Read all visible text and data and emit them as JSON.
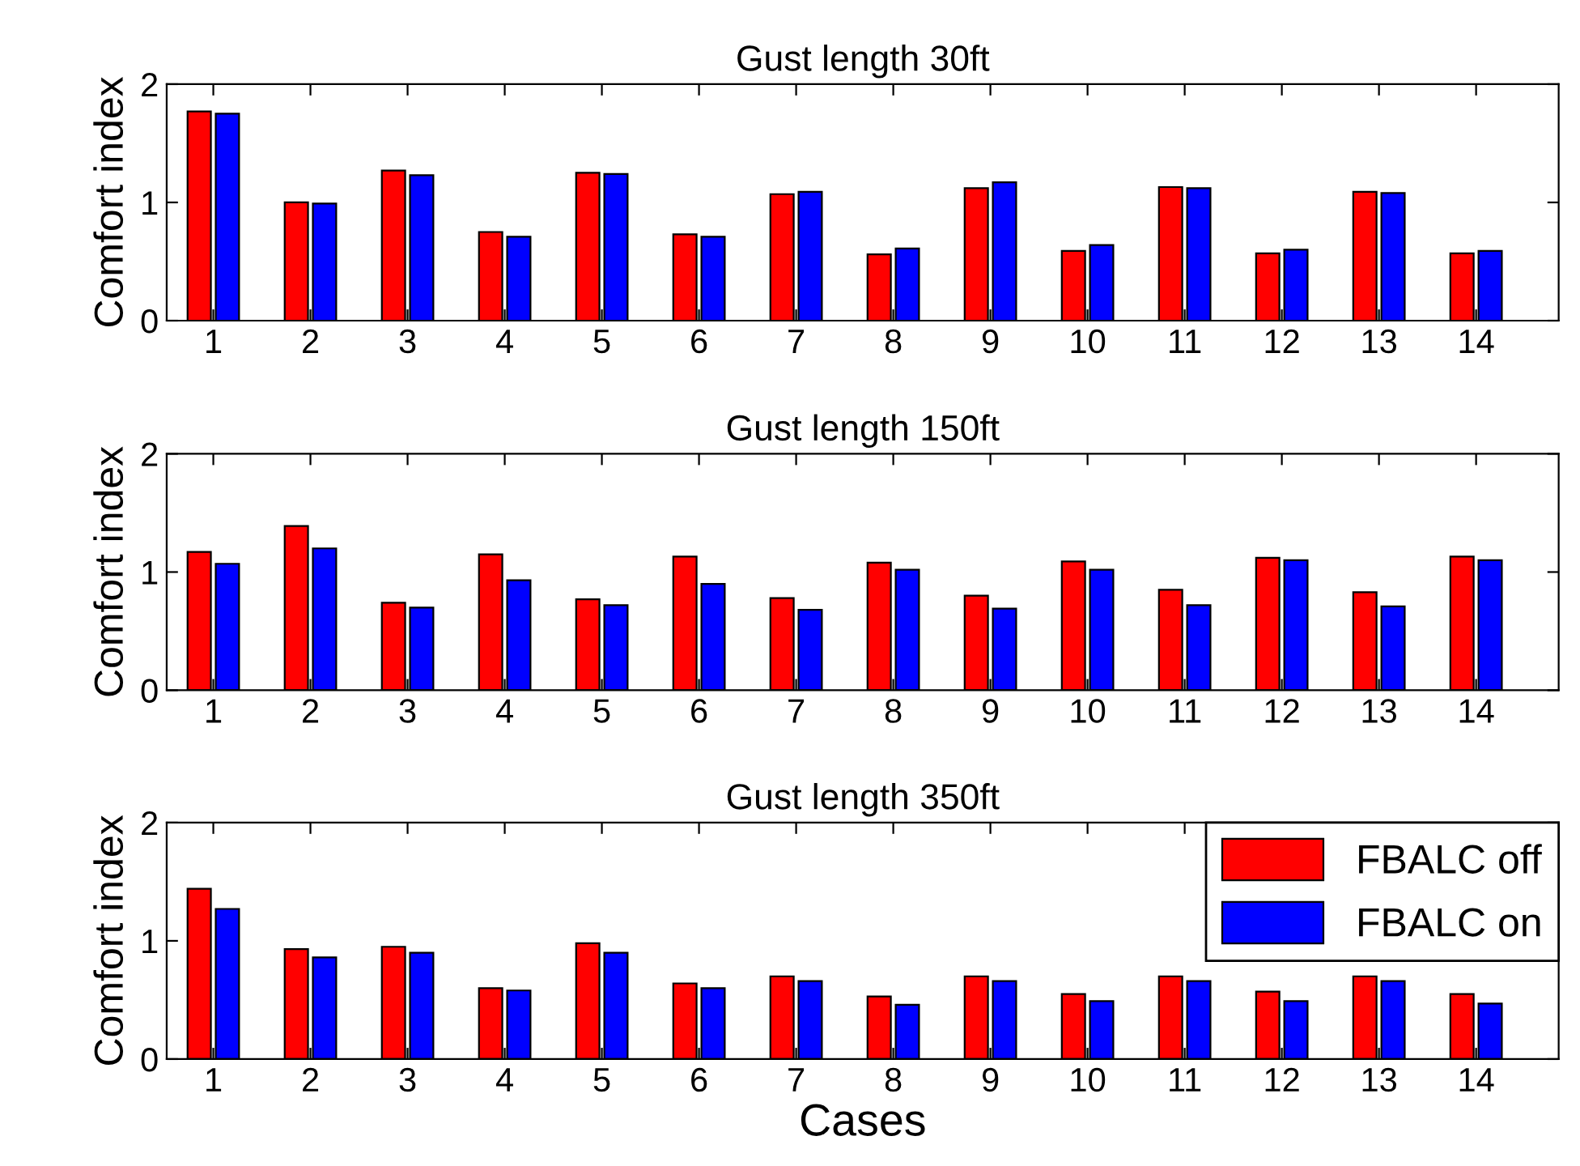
{
  "chart_data": [
    {
      "type": "bar",
      "title": "Gust length 30ft",
      "ylabel": "Comfort index",
      "categories": [
        "1",
        "2",
        "3",
        "4",
        "5",
        "6",
        "7",
        "8",
        "9",
        "10",
        "11",
        "12",
        "13",
        "14"
      ],
      "ylim": [
        0,
        2
      ],
      "yticks": [
        0,
        1,
        2
      ],
      "grid": false,
      "legend": false,
      "series": [
        {
          "color": "#ff0000",
          "values": [
            1.77,
            1.0,
            1.27,
            0.75,
            1.25,
            0.73,
            1.07,
            0.56,
            1.12,
            0.59,
            1.13,
            0.57,
            1.09,
            0.57
          ]
        },
        {
          "color": "#0000ff",
          "values": [
            1.75,
            0.99,
            1.23,
            0.71,
            1.24,
            0.71,
            1.09,
            0.61,
            1.17,
            0.64,
            1.12,
            0.6,
            1.08,
            0.59
          ]
        }
      ]
    },
    {
      "type": "bar",
      "title": "Gust length 150ft",
      "ylabel": "Comfort index",
      "categories": [
        "1",
        "2",
        "3",
        "4",
        "5",
        "6",
        "7",
        "8",
        "9",
        "10",
        "11",
        "12",
        "13",
        "14"
      ],
      "ylim": [
        0,
        2
      ],
      "yticks": [
        0,
        1,
        2
      ],
      "grid": false,
      "legend": false,
      "series": [
        {
          "color": "#ff0000",
          "values": [
            1.17,
            1.39,
            0.74,
            1.15,
            0.77,
            1.13,
            0.78,
            1.08,
            0.8,
            1.09,
            0.85,
            1.12,
            0.83,
            1.13
          ]
        },
        {
          "color": "#0000ff",
          "values": [
            1.07,
            1.2,
            0.7,
            0.93,
            0.72,
            0.9,
            0.68,
            1.02,
            0.69,
            1.02,
            0.72,
            1.1,
            0.71,
            1.1
          ]
        }
      ]
    },
    {
      "type": "bar",
      "title": "Gust length 350ft",
      "ylabel": "Comfort index",
      "xlabel": "Cases",
      "categories": [
        "1",
        "2",
        "3",
        "4",
        "5",
        "6",
        "7",
        "8",
        "9",
        "10",
        "11",
        "12",
        "13",
        "14"
      ],
      "ylim": [
        0,
        2
      ],
      "yticks": [
        0,
        1,
        2
      ],
      "grid": false,
      "legend": "top right",
      "series": [
        {
          "name": "FBALC off",
          "color": "#ff0000",
          "values": [
            1.44,
            0.93,
            0.95,
            0.6,
            0.98,
            0.64,
            0.7,
            0.53,
            0.7,
            0.55,
            0.7,
            0.57,
            0.7,
            0.55
          ]
        },
        {
          "name": "FBALC on",
          "color": "#0000ff",
          "values": [
            1.27,
            0.86,
            0.9,
            0.58,
            0.9,
            0.6,
            0.66,
            0.46,
            0.66,
            0.49,
            0.66,
            0.49,
            0.66,
            0.47
          ]
        }
      ]
    }
  ]
}
